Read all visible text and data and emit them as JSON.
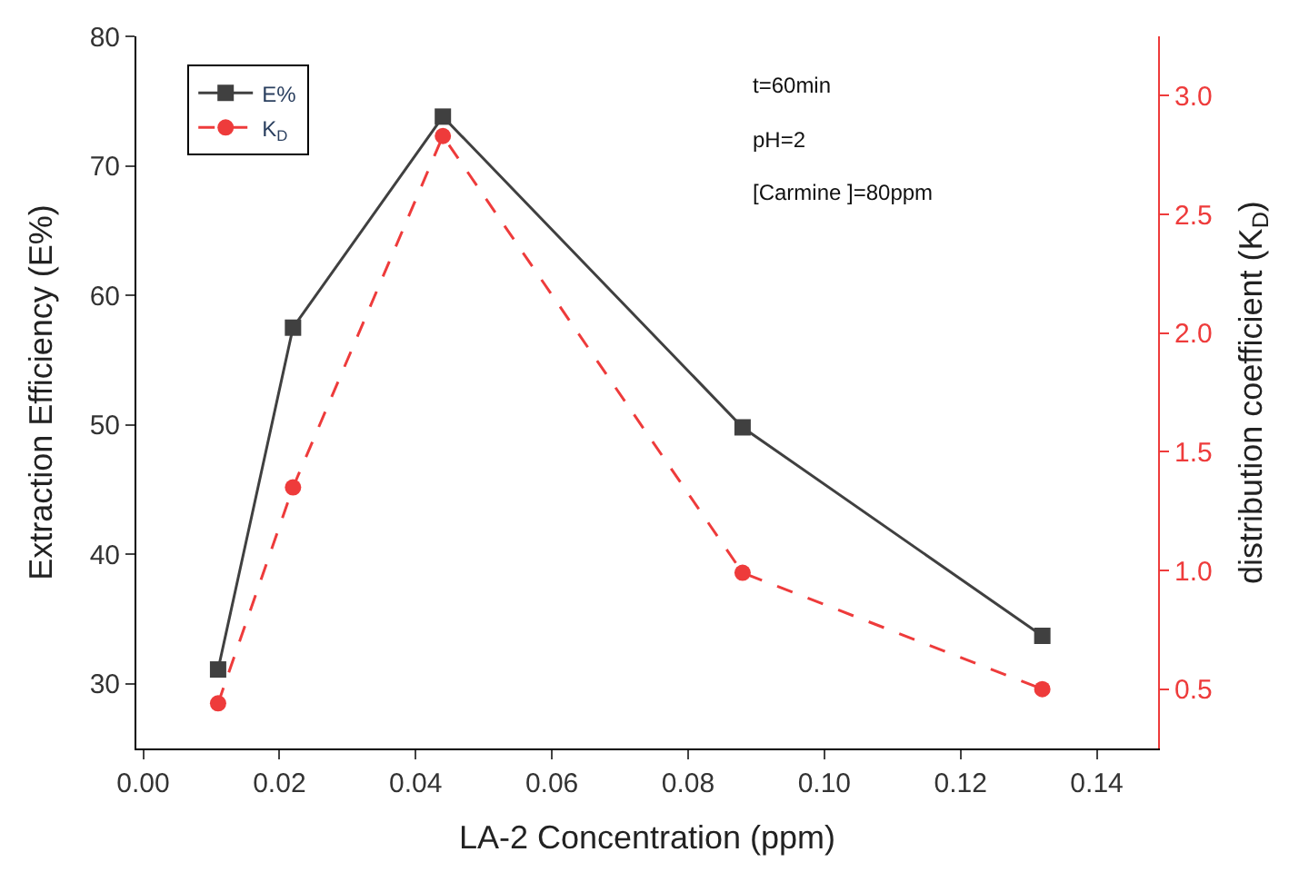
{
  "chart_data": {
    "type": "line",
    "xlabel": "LA-2 Concentration (ppm)",
    "ylabel": "Extraction Efficiency (E%)",
    "y2label": "distribution coefficient (K$_{D}$)",
    "x": [
      0.011,
      0.022,
      0.044,
      0.088,
      0.132
    ],
    "series": [
      {
        "name": "E%",
        "color": "#404040",
        "values": [
          31.1,
          57.5,
          73.8,
          49.8,
          33.7
        ],
        "marker": "square",
        "line_style": "solid"
      },
      {
        "name": "K$_{D}$",
        "color": "#ee3b3b",
        "values": [
          0.44,
          1.35,
          2.83,
          0.99,
          0.5
        ],
        "marker": "circle",
        "line_style": "dashed",
        "axis": "y2"
      }
    ],
    "xlim": [
      -0.001,
      0.149
    ],
    "xticks": [
      {
        "value": 0,
        "label": "0.00"
      },
      0.02,
      0.04,
      0.06,
      0.08,
      {
        "value": 0.1,
        "label": "0.10"
      },
      0.12,
      0.14
    ],
    "ylim": [
      25,
      80
    ],
    "yticks": [
      30,
      40,
      50,
      60,
      70,
      80
    ],
    "y2lim": [
      0.25,
      3.25
    ],
    "y2ticks": [
      0.5,
      {
        "value": 1,
        "label": "1.0"
      },
      1.5,
      {
        "value": 2,
        "label": "2.0"
      },
      2.5,
      {
        "value": 3,
        "label": "3.0"
      }
    ],
    "annotations": [
      "t=60min",
      "pH=2",
      "[Carmine ]=80ppm"
    ],
    "legend": "top left"
  }
}
